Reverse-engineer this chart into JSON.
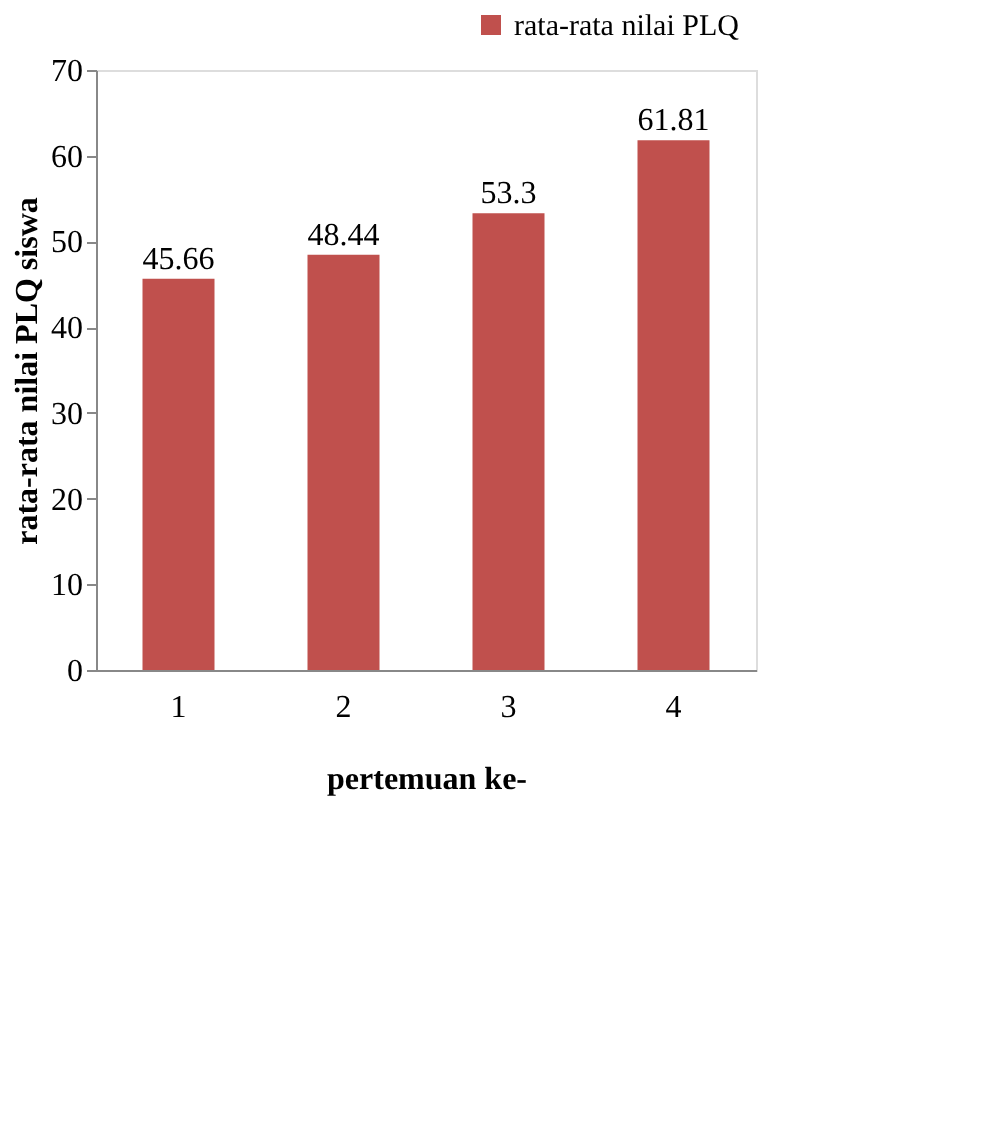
{
  "chart_data": {
    "type": "bar",
    "xlabel": "pertemuan ke-",
    "ylabel": "rata-rata nilai PLQ siswa",
    "categories": [
      "1",
      "2",
      "3",
      "4"
    ],
    "series": [
      {
        "name": "rata-rata nilai PLQ",
        "color": "#c0504d",
        "values": [
          45.66,
          48.44,
          53.3,
          61.81
        ]
      }
    ],
    "ylim": [
      0,
      70
    ],
    "yticks": [
      0,
      10,
      20,
      30,
      40,
      50,
      60,
      70
    ],
    "data_labels": true,
    "legend": "top right",
    "grid": false
  }
}
